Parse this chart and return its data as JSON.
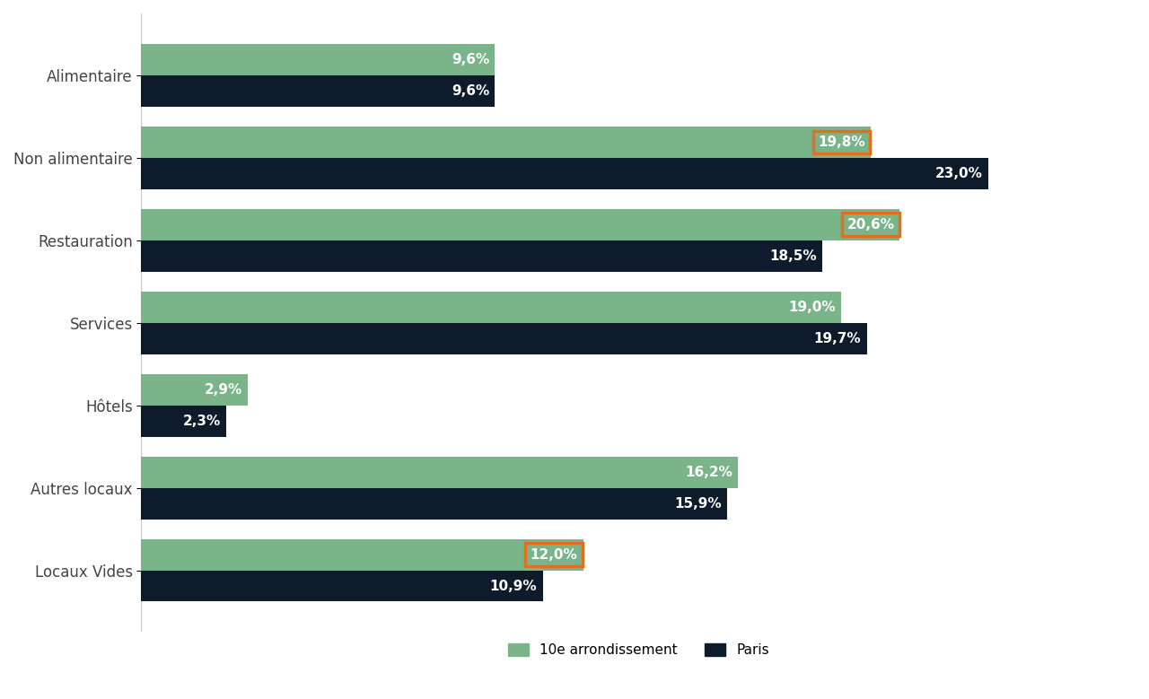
{
  "categories": [
    "Alimentaire",
    "Non alimentaire",
    "Restauration",
    "Services",
    "Hôtels",
    "Autres locaux",
    "Locaux Vides"
  ],
  "arrondissement_values": [
    9.6,
    19.8,
    20.6,
    19.0,
    2.9,
    16.2,
    12.0
  ],
  "paris_values": [
    9.6,
    23.0,
    18.5,
    19.7,
    2.3,
    15.9,
    10.9
  ],
  "arrondissement_color": "#7ab58a",
  "paris_color": "#0d1b2a",
  "background_color": "#ffffff",
  "bar_height": 0.38,
  "legend_labels": [
    "10e arrondissement",
    "Paris"
  ],
  "highlighted_arr_indices": [
    1,
    2,
    6
  ],
  "highlight_color": "#e07020",
  "label_fontsize": 11,
  "category_fontsize": 12,
  "xlim": [
    0,
    27
  ],
  "figsize": [
    12.8,
    7.79
  ]
}
